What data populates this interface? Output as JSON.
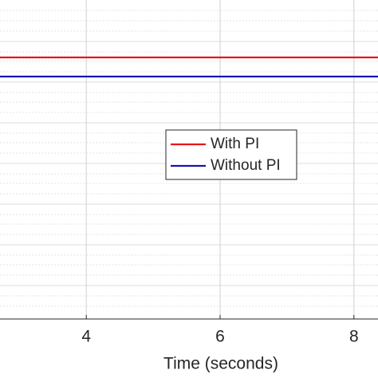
{
  "chart_data": {
    "type": "line",
    "x_label": "Time (seconds)",
    "x": [
      2.71,
      8.36
    ],
    "series": [
      {
        "name": "With PI",
        "color": "#e8141a",
        "values": [
          0.82,
          0.82
        ]
      },
      {
        "name": "Without PI",
        "color": "#1414b4",
        "values": [
          0.76,
          0.76
        ]
      }
    ],
    "xlim": [
      2.71,
      8.36
    ],
    "xticks": [
      4,
      6,
      8
    ],
    "ylim": [
      0,
      1
    ],
    "grid": true
  }
}
